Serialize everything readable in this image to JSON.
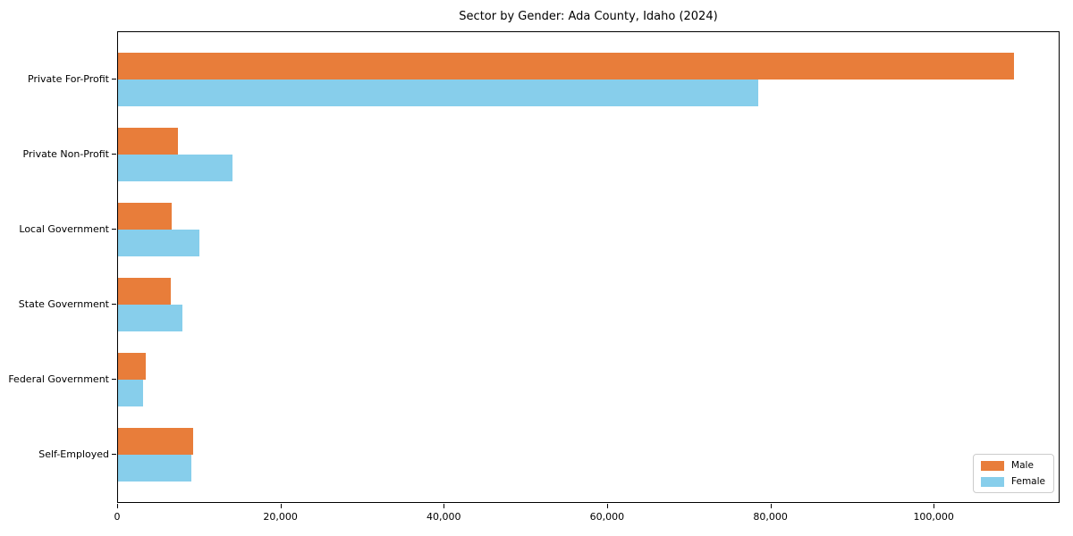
{
  "title": "Sector by Gender: Ada County, Idaho (2024)",
  "colors": {
    "male": "#e87d3a",
    "female": "#87ceeb",
    "spine": "#000000",
    "legend_border": "#cccccc",
    "background": "#ffffff"
  },
  "x_axis": {
    "tick_labels": [
      "0",
      "20,000",
      "40,000",
      "60,000",
      "80,000",
      "100,000"
    ],
    "tick_values": [
      0,
      20000,
      40000,
      60000,
      80000,
      100000
    ]
  },
  "chart_data": {
    "type": "bar",
    "orientation": "horizontal",
    "title": "Sector by Gender: Ada County, Idaho (2024)",
    "categories": [
      "Private For-Profit",
      "Private Non-Profit",
      "Local Government",
      "State Government",
      "Federal Government",
      "Self-Employed"
    ],
    "series": [
      {
        "name": "Male",
        "color": "#e87d3a",
        "values": [
          109700,
          7300,
          6600,
          6500,
          3400,
          9200
        ]
      },
      {
        "name": "Female",
        "color": "#87ceeb",
        "values": [
          78400,
          14000,
          10000,
          7900,
          3100,
          9000
        ]
      }
    ],
    "xlabel": "",
    "ylabel": "",
    "xlim": [
      0,
      115200
    ],
    "xticks": [
      0,
      20000,
      40000,
      60000,
      80000,
      100000
    ],
    "grid": false,
    "legend_position": "lower right"
  }
}
